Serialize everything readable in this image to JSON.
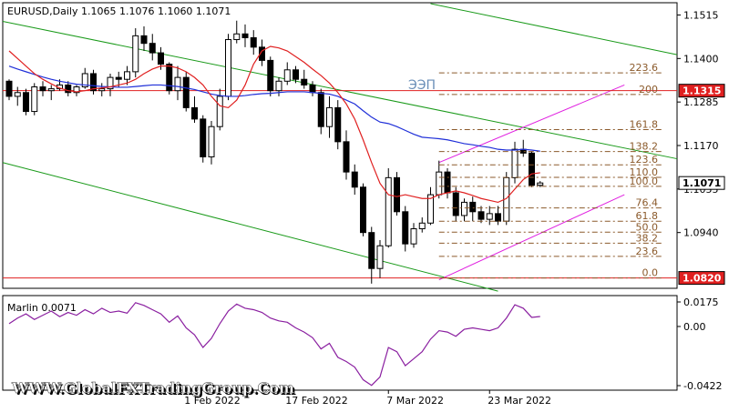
{
  "header": {
    "symbol_line": "EURUSD,Daily  1.1065  1.1076  1.1060  1.1071"
  },
  "chart_data": {
    "type": "candlestick",
    "symbol": "EURUSD",
    "timeframe": "Daily",
    "ohlc_last": {
      "open": 1.1065,
      "high": 1.1076,
      "low": 1.106,
      "close": 1.1071
    },
    "ylim": [
      1.0795,
      1.1545
    ],
    "y_ticks": [
      "1.1515",
      "1.1400",
      "1.1285",
      "1.1170",
      "1.1055",
      "1.0940",
      "1.0820"
    ],
    "y_tick_values": [
      1.1515,
      1.14,
      1.1285,
      1.117,
      1.1055,
      1.094,
      1.082
    ],
    "x_ticks": [
      "1 Feb 2022",
      "17 Feb 2022",
      "7 Mar 2022",
      "23 Mar 2022"
    ],
    "x_tick_index": [
      21,
      33,
      45,
      57
    ],
    "candles": [
      [
        1.134,
        1.1345,
        1.129,
        1.13
      ],
      [
        1.13,
        1.1325,
        1.1275,
        1.131
      ],
      [
        1.131,
        1.132,
        1.125,
        1.126
      ],
      [
        1.126,
        1.1335,
        1.125,
        1.1325
      ],
      [
        1.1325,
        1.134,
        1.13,
        1.1315
      ],
      [
        1.1315,
        1.133,
        1.129,
        1.132
      ],
      [
        1.132,
        1.1345,
        1.1315,
        1.133
      ],
      [
        1.133,
        1.134,
        1.13,
        1.131
      ],
      [
        1.131,
        1.133,
        1.13,
        1.1325
      ],
      [
        1.1325,
        1.1375,
        1.132,
        1.136
      ],
      [
        1.136,
        1.137,
        1.1305,
        1.1315
      ],
      [
        1.1315,
        1.1335,
        1.13,
        1.132
      ],
      [
        1.132,
        1.136,
        1.13,
        1.135
      ],
      [
        1.135,
        1.1365,
        1.1325,
        1.1345
      ],
      [
        1.1345,
        1.138,
        1.133,
        1.1365
      ],
      [
        1.1365,
        1.148,
        1.135,
        1.146
      ],
      [
        1.146,
        1.1485,
        1.142,
        1.144
      ],
      [
        1.144,
        1.1465,
        1.1395,
        1.1415
      ],
      [
        1.1415,
        1.143,
        1.137,
        1.1385
      ],
      [
        1.1385,
        1.139,
        1.1305,
        1.1315
      ],
      [
        1.1315,
        1.138,
        1.129,
        1.135
      ],
      [
        1.135,
        1.1365,
        1.126,
        1.127
      ],
      [
        1.127,
        1.13,
        1.123,
        1.124
      ],
      [
        1.124,
        1.125,
        1.1125,
        1.114
      ],
      [
        1.114,
        1.1235,
        1.112,
        1.122
      ],
      [
        1.122,
        1.132,
        1.121,
        1.13
      ],
      [
        1.13,
        1.1465,
        1.129,
        1.145
      ],
      [
        1.145,
        1.15,
        1.144,
        1.1465
      ],
      [
        1.1465,
        1.149,
        1.143,
        1.1455
      ],
      [
        1.1455,
        1.1475,
        1.141,
        1.143
      ],
      [
        1.143,
        1.145,
        1.138,
        1.1395
      ],
      [
        1.1395,
        1.1405,
        1.13,
        1.1315
      ],
      [
        1.1315,
        1.135,
        1.13,
        1.134
      ],
      [
        1.134,
        1.139,
        1.133,
        1.137
      ],
      [
        1.137,
        1.138,
        1.1335,
        1.1345
      ],
      [
        1.1345,
        1.137,
        1.132,
        1.133
      ],
      [
        1.133,
        1.134,
        1.13,
        1.131
      ],
      [
        1.131,
        1.132,
        1.12,
        1.122
      ],
      [
        1.122,
        1.13,
        1.119,
        1.127
      ],
      [
        1.127,
        1.129,
        1.116,
        1.118
      ],
      [
        1.118,
        1.121,
        1.108,
        1.11
      ],
      [
        1.11,
        1.112,
        1.104,
        1.106
      ],
      [
        1.106,
        1.107,
        1.093,
        1.094
      ],
      [
        1.094,
        1.0955,
        1.0805,
        1.0845
      ],
      [
        1.0845,
        1.092,
        1.082,
        1.0905
      ],
      [
        1.0905,
        1.111,
        1.09,
        1.1085
      ],
      [
        1.1085,
        1.11,
        1.0985,
        1.0995
      ],
      [
        1.0995,
        1.101,
        1.089,
        1.091
      ],
      [
        1.091,
        1.0965,
        1.09,
        1.095
      ],
      [
        1.095,
        1.098,
        1.094,
        1.0965
      ],
      [
        1.0965,
        1.106,
        1.096,
        1.104
      ],
      [
        1.104,
        1.113,
        1.103,
        1.11
      ],
      [
        1.11,
        1.111,
        1.103,
        1.1045
      ],
      [
        1.1045,
        1.106,
        1.097,
        1.0985
      ],
      [
        1.0985,
        1.103,
        1.097,
        1.102
      ],
      [
        1.102,
        1.1035,
        1.097,
        1.0995
      ],
      [
        1.0995,
        1.101,
        1.0965,
        1.0975
      ],
      [
        1.0975,
        1.101,
        1.096,
        1.099
      ],
      [
        1.099,
        1.101,
        1.096,
        1.097
      ],
      [
        1.097,
        1.11,
        1.096,
        1.1085
      ],
      [
        1.1085,
        1.118,
        1.107,
        1.116
      ],
      [
        1.116,
        1.1185,
        1.114,
        1.115
      ],
      [
        1.115,
        1.1155,
        1.106,
        1.1065
      ],
      [
        1.1065,
        1.1076,
        1.106,
        1.1071
      ]
    ],
    "moving_averages": [
      {
        "color": "#1f2fd8",
        "values": [
          1.138,
          1.1372,
          1.1365,
          1.1358,
          1.1351,
          1.1345,
          1.134,
          1.1336,
          1.1332,
          1.133,
          1.1328,
          1.1326,
          1.1325,
          1.1324,
          1.1324,
          1.1326,
          1.1328,
          1.133,
          1.133,
          1.1328,
          1.1326,
          1.1322,
          1.1318,
          1.1312,
          1.1306,
          1.1302,
          1.13,
          1.13,
          1.1302,
          1.1305,
          1.1307,
          1.1308,
          1.131,
          1.1312,
          1.1312,
          1.1312,
          1.131,
          1.1308,
          1.1306,
          1.13,
          1.129,
          1.128,
          1.1262,
          1.1245,
          1.1232,
          1.1228,
          1.122,
          1.121,
          1.12,
          1.1192,
          1.119,
          1.1188,
          1.1185,
          1.118,
          1.1175,
          1.1172,
          1.1168,
          1.1165,
          1.116,
          1.1158,
          1.1158,
          1.116,
          1.1158,
          1.1155
        ]
      },
      {
        "color": "#e02020",
        "values": [
          1.142,
          1.14,
          1.138,
          1.136,
          1.1345,
          1.1333,
          1.1322,
          1.1315,
          1.1312,
          1.1315,
          1.132,
          1.1322,
          1.1325,
          1.133,
          1.1335,
          1.1345,
          1.136,
          1.1372,
          1.138,
          1.138,
          1.1375,
          1.1365,
          1.135,
          1.133,
          1.13,
          1.1275,
          1.127,
          1.129,
          1.133,
          1.1385,
          1.142,
          1.1432,
          1.1428,
          1.142,
          1.1405,
          1.139,
          1.1372,
          1.1355,
          1.1335,
          1.131,
          1.128,
          1.124,
          1.1185,
          1.1125,
          1.107,
          1.104,
          1.1035,
          1.104,
          1.1035,
          1.103,
          1.103,
          1.104,
          1.1045,
          1.105,
          1.1045,
          1.1038,
          1.103,
          1.1025,
          1.102,
          1.103,
          1.1055,
          1.108,
          1.1095,
          1.1098
        ]
      }
    ],
    "horizontal_levels": [
      {
        "price": 1.1315,
        "label": "1.1315",
        "color": "#e02020"
      },
      {
        "price": 1.082,
        "label": "1.0820",
        "color": "#e02020"
      }
    ],
    "current_price": {
      "price": 1.1071,
      "label": "1.1071"
    },
    "fibonacci": {
      "levels": [
        "0.0",
        "23.6",
        "38.2",
        "50.0",
        "61.8",
        "76.4",
        "100.0",
        "110.0",
        "123.6",
        "138.2",
        "161.8",
        "200",
        "223.6"
      ],
      "prices": [
        1.082,
        1.0877,
        1.0912,
        1.0941,
        1.097,
        1.1005,
        1.1062,
        1.1086,
        1.1119,
        1.1154,
        1.1212,
        1.1305,
        1.1362
      ]
    },
    "annotations": [
      {
        "text": "ЭЭП",
        "color": "#6a8fb8"
      }
    ]
  },
  "indicator": {
    "label": "Marlin 0.0071",
    "ylim": [
      -0.0422,
      0.0175
    ],
    "y_ticks": [
      "0.0175",
      "0.00",
      "-0.0422"
    ],
    "y_tick_values": [
      0.0175,
      0.0,
      -0.0422
    ],
    "color": "#8a1fa0",
    "values": [
      0.002,
      0.006,
      0.009,
      0.005,
      0.008,
      0.011,
      0.007,
      0.01,
      0.008,
      0.012,
      0.009,
      0.013,
      0.01,
      0.011,
      0.0095,
      0.017,
      0.015,
      0.012,
      0.009,
      0.003,
      0.0075,
      -0.001,
      -0.006,
      -0.015,
      -0.0085,
      0.002,
      0.011,
      0.016,
      0.013,
      0.012,
      0.01,
      0.006,
      0.004,
      0.003,
      -0.001,
      -0.004,
      -0.008,
      -0.016,
      -0.012,
      -0.022,
      -0.025,
      -0.029,
      -0.038,
      -0.042,
      -0.036,
      -0.015,
      -0.018,
      -0.028,
      -0.023,
      -0.018,
      -0.009,
      -0.003,
      -0.004,
      -0.007,
      -0.002,
      -0.001,
      -0.002,
      -0.003,
      -0.001,
      0.006,
      0.0155,
      0.013,
      0.0065,
      0.0071
    ]
  },
  "watermark": "WWW.GlobalFXTradingGroup.Com"
}
